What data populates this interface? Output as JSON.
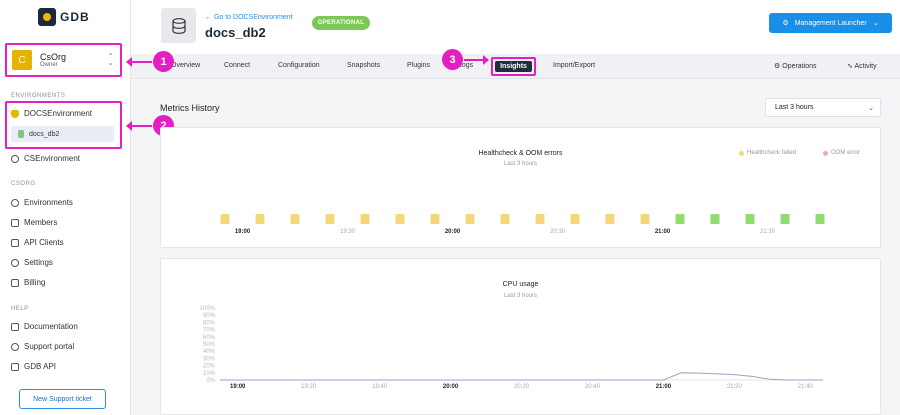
{
  "logo": {
    "text": "GDB"
  },
  "org": {
    "avatar": "C",
    "name": "CsOrg",
    "role": "Owner"
  },
  "sidebar": {
    "environments_label": "ENVIRONMENTS",
    "env_items": [
      {
        "label": "DOCSEnvironment"
      },
      {
        "label": "docs_db2"
      },
      {
        "label": "CSEnvironment"
      }
    ],
    "org_label": "CSORG",
    "org_items": [
      {
        "label": "Environments"
      },
      {
        "label": "Members"
      },
      {
        "label": "API Clients"
      },
      {
        "label": "Settings"
      },
      {
        "label": "Billing"
      }
    ],
    "help_label": "HELP",
    "help_items": [
      {
        "label": "Documentation"
      },
      {
        "label": "Support portal"
      },
      {
        "label": "GDB API"
      }
    ],
    "support_button": "New Support ticket"
  },
  "header": {
    "back_link": "Go to DOCSEnvironment",
    "title": "docs_db2",
    "status": "OPERATIONAL",
    "launcher": "Management Launcher"
  },
  "tabs": {
    "items": [
      "Overview",
      "Connect",
      "Configuration",
      "Snapshots",
      "Plugins",
      "Logs",
      "Insights",
      "Import/Export"
    ],
    "active": "Insights",
    "operations": "Operations",
    "activity": "Activity"
  },
  "annotations": {
    "m1": "1",
    "m2": "2",
    "m3": "3"
  },
  "main": {
    "metrics_title": "Metrics History",
    "range": "Last 3 hours"
  },
  "colors": {
    "accent": "#1a8fe8",
    "annotation": "#e31fc3",
    "healthcheck": "#f5d77a",
    "ok": "#8fdc6f",
    "oom": "#f4a7b9"
  },
  "chart_data": [
    {
      "type": "scatter",
      "title": "Healthcheck & OOM errors",
      "subtitle": "Last 3 hours",
      "legend": [
        "Healthcheck failed",
        "OOM error"
      ],
      "legend_position": "top-right",
      "x_ticks": [
        "19:00",
        "19:30",
        "20:00",
        "20:30",
        "21:00",
        "21:30"
      ],
      "x_ticks_bold": [
        "19:00",
        "20:00",
        "21:00"
      ],
      "series": [
        {
          "name": "Healthcheck failed",
          "x": [
            "18:55",
            "19:05",
            "19:15",
            "19:25",
            "19:35",
            "19:45",
            "19:55",
            "20:05",
            "20:15",
            "20:25",
            "20:35",
            "20:45",
            "20:55",
            "21:05",
            "21:15",
            "21:25",
            "21:35",
            "21:45"
          ],
          "values": [
            1,
            1,
            1,
            1,
            1,
            1,
            1,
            1,
            1,
            1,
            1,
            1,
            1,
            0,
            0,
            0,
            0,
            0
          ]
        }
      ]
    },
    {
      "type": "line",
      "title": "CPU usage",
      "subtitle": "Last 3 hours",
      "y_ticks": [
        "100%",
        "90%",
        "80%",
        "70%",
        "60%",
        "50%",
        "40%",
        "30%",
        "20%",
        "10%",
        "0%"
      ],
      "ylim": [
        0,
        100
      ],
      "x_ticks": [
        "19:00",
        "19:20",
        "19:40",
        "20:00",
        "20:20",
        "20:40",
        "21:00",
        "21:20",
        "21:40"
      ],
      "x_ticks_bold": [
        "19:00",
        "20:00",
        "21:00"
      ],
      "x": [
        "18:55",
        "19:30",
        "20:00",
        "20:30",
        "21:00",
        "21:05",
        "21:10",
        "21:15",
        "21:20",
        "21:25",
        "21:30",
        "21:35",
        "21:40",
        "21:45"
      ],
      "values": [
        0,
        0,
        0,
        0,
        0,
        10,
        9.5,
        8.5,
        7.5,
        5,
        1,
        0,
        0,
        0
      ]
    }
  ]
}
